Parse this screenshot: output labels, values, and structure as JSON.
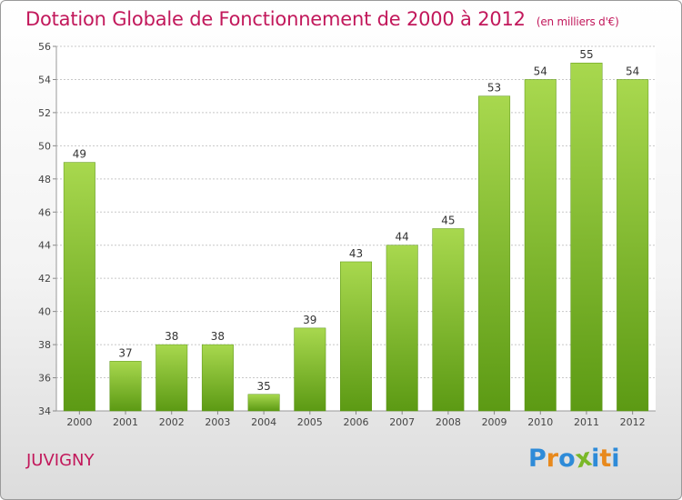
{
  "title": "Dotation Globale de Fonctionnement de 2000 à 2012",
  "subtitle": "(en milliers d'€)",
  "commune": "JUVIGNY",
  "logo": {
    "letters": [
      "P",
      "r",
      "o",
      "x",
      "i",
      "t",
      "i"
    ],
    "colors": [
      "#2e8bd8",
      "#e8891c",
      "#2e8bd8",
      "#7ab828",
      "#2e8bd8",
      "#e8891c",
      "#2e8bd8"
    ]
  },
  "colors": {
    "title": "#c2185b",
    "bar_light": "#a8d84e",
    "bar_dark": "#5c9a14"
  },
  "chart_data": {
    "type": "bar",
    "categories": [
      "2000",
      "2001",
      "2002",
      "2003",
      "2004",
      "2005",
      "2006",
      "2007",
      "2008",
      "2009",
      "2010",
      "2011",
      "2012"
    ],
    "values": [
      49,
      37,
      38,
      38,
      35,
      39,
      43,
      44,
      45,
      53,
      54,
      55,
      54
    ],
    "title": "Dotation Globale de Fonctionnement de 2000 à 2012",
    "ylim": [
      34,
      56
    ],
    "yticks": [
      34,
      36,
      38,
      40,
      42,
      44,
      46,
      48,
      50,
      52,
      54,
      56
    ],
    "grid": true
  }
}
